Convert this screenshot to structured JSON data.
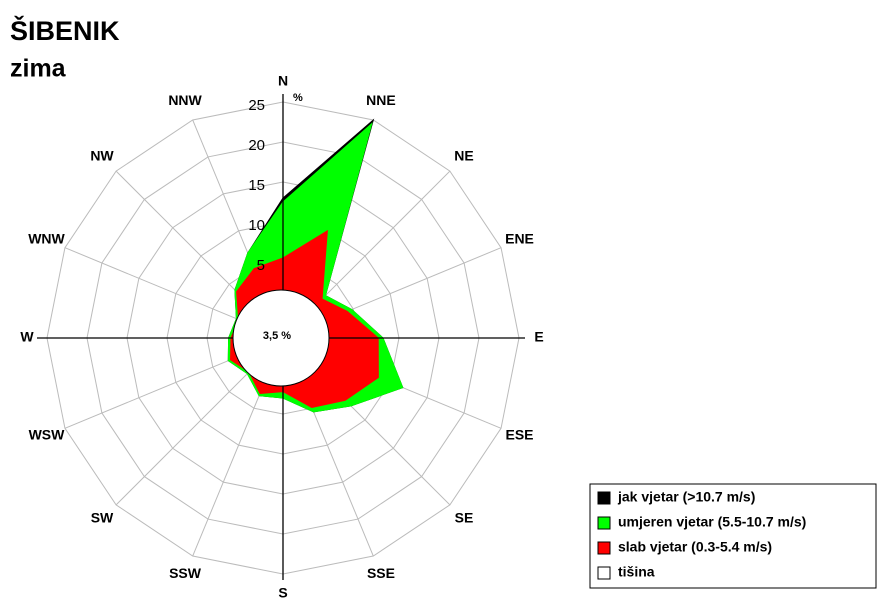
{
  "chart_data": {
    "type": "windrose",
    "title": "ŠIBENIK",
    "subtitle": "zima",
    "unit": "%",
    "categories": [
      "N",
      "NNE",
      "NE",
      "ENE",
      "E",
      "ESE",
      "SE",
      "SSE",
      "S",
      "SSW",
      "SW",
      "WSW",
      "W",
      "WNW",
      "NW",
      "NNW"
    ],
    "series": [
      {
        "name": "jak  vjetar (>10.7 m/s)",
        "color": "#000000",
        "values": [
          0.5,
          0.5,
          0,
          0,
          0,
          0,
          0,
          0,
          0,
          0,
          0,
          0,
          0,
          0,
          0,
          0
        ]
      },
      {
        "name": "umjeren vjetar (5.5-10.7 m/s)",
        "color": "#00ff00",
        "values": [
          7,
          14.5,
          0.6,
          0.6,
          0.6,
          3.3,
          1,
          0.6,
          0.8,
          0.3,
          0.3,
          0.3,
          0.3,
          0.3,
          0.3,
          2.1
        ]
      },
      {
        "name": "slab vjetar (0.3-5.4 m/s)",
        "color": "#ff0000",
        "values": [
          5.5,
          10,
          2.4,
          4.2,
          7.4,
          8.4,
          6.5,
          4.9,
          2.2,
          3,
          1.5,
          2.6,
          2,
          1.5,
          3.7,
          4.9
        ]
      }
    ],
    "calm": 3.5,
    "calm_label": "3,5 %",
    "calm_name": "tišina",
    "ylim": [
      0,
      25
    ],
    "yticks": [
      5,
      10,
      15,
      20,
      25
    ]
  }
}
